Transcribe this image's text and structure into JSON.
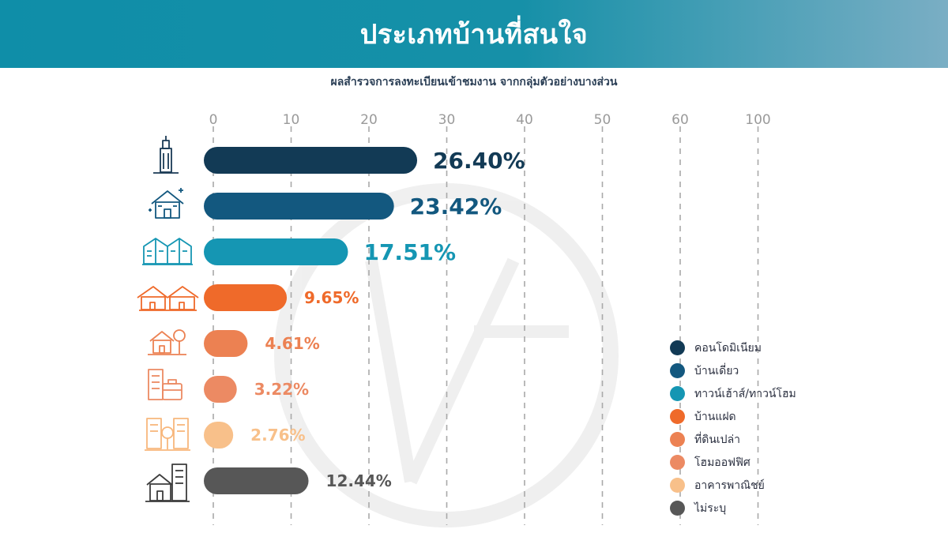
{
  "header": {
    "title": "ประเภทบ้านที่สนใจ"
  },
  "subtitle": "ผลสำรวจการลงทะเบียนเข้าชมงาน จากกลุ่มตัวอย่างบางส่วน",
  "chart_data": {
    "type": "bar",
    "orientation": "horizontal",
    "title": "ประเภทบ้านที่สนใจ",
    "subtitle": "ผลสำรวจการลงทะเบียนเข้าชมงาน จากกลุ่มตัวอย่างบางส่วน",
    "x_ticks": [
      "0",
      "10",
      "20",
      "30",
      "40",
      "50",
      "60",
      "100"
    ],
    "grid": "vertical-dashed",
    "legend_position": "right",
    "categories": [
      "คอนโดมิเนียม",
      "บ้านเดี่ยว",
      "ทาวน์เฮ้าส์/ทาวน์โฮม",
      "บ้านแฝด",
      "ที่ดินเปล่า",
      "โฮมออฟฟิศ",
      "อาคารพาณิชย์",
      "ไม่ระบุ"
    ],
    "values": [
      26.4,
      23.42,
      17.51,
      9.65,
      4.61,
      3.22,
      2.76,
      12.44
    ],
    "labels": [
      "26.40%",
      "23.42%",
      "17.51%",
      "9.65%",
      "4.61%",
      "3.22%",
      "2.76%",
      "12.44%"
    ],
    "colors": [
      "#123a55",
      "#13587f",
      "#1596b3",
      "#ef6a2a",
      "#ec8152",
      "#ec8a63",
      "#f8c08a",
      "#575757"
    ],
    "icons": [
      "condo-tower-icon",
      "detached-house-icon",
      "townhouse-icon",
      "twin-house-icon",
      "vacant-land-icon",
      "home-office-icon",
      "commercial-building-icon",
      "unspecified-building-icon"
    ]
  }
}
